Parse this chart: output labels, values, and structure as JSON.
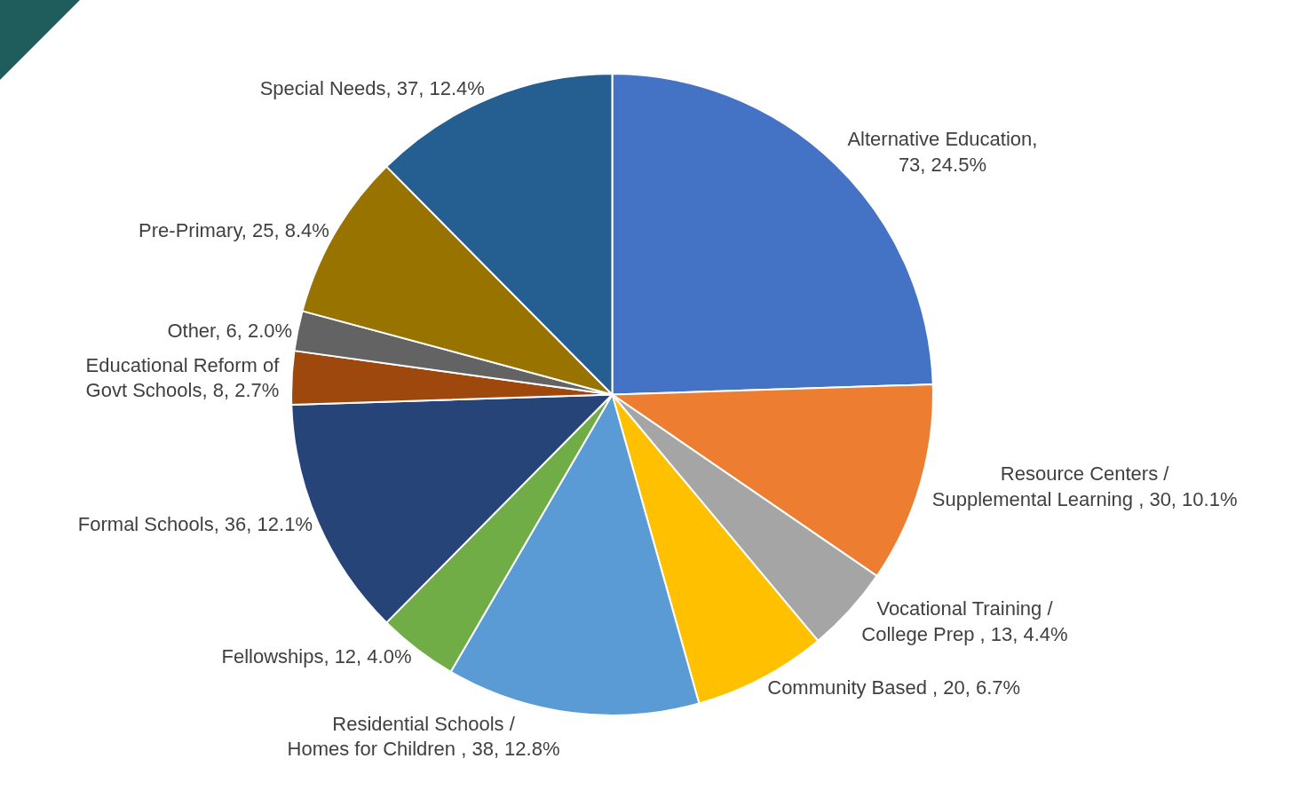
{
  "chart_data": {
    "type": "pie",
    "categories": [
      "Alternative Education, 73, 24.5%",
      "Resource Centers / Supplemental Learning , 30, 10.1%",
      "Vocational Training / College Prep , 13, 4.4%",
      "Community Based , 20, 6.7%",
      "Residential Schools / Homes for Children , 38, 12.8%",
      "Fellowships, 12, 4.0%",
      "Formal Schools, 36, 12.1%",
      "Educational Reform of Govt Schools, 8, 2.7%",
      "Other, 6, 2.0%",
      "Pre-Primary, 25, 8.4%",
      "Special Needs, 37, 12.4%"
    ],
    "values": [
      73,
      30,
      13,
      20,
      38,
      12,
      36,
      8,
      6,
      25,
      37
    ],
    "colors": [
      "#4472c4",
      "#ed7d31",
      "#a5a5a5",
      "#ffc000",
      "#5b9bd5",
      "#70ad47",
      "#264478",
      "#9e480e",
      "#636363",
      "#997300",
      "#255e91"
    ]
  }
}
